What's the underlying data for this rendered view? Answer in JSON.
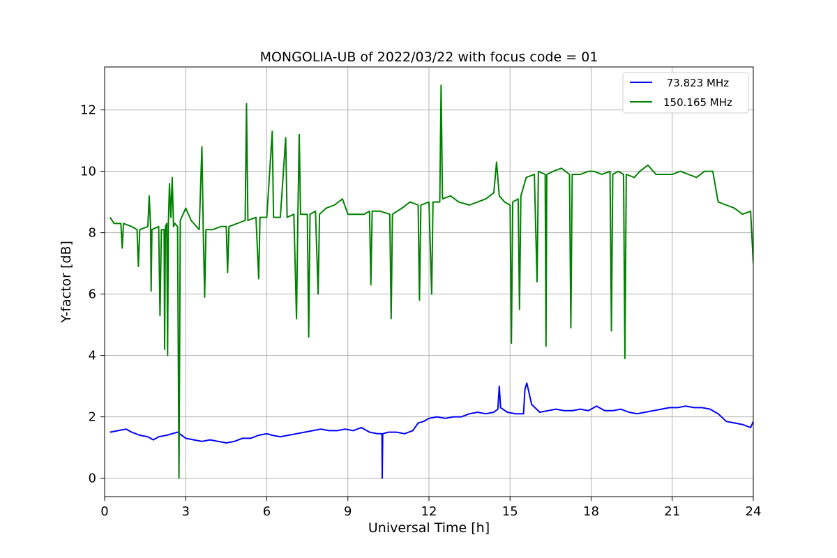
{
  "chart_data": {
    "type": "line",
    "title": "MONGOLIA-UB of 2022/03/22 with focus code = 01",
    "xlabel": "Universal Time [h]",
    "ylabel": "Y-factor [dB]",
    "xlim": [
      0,
      24
    ],
    "ylim": [
      -0.6,
      13.4
    ],
    "xticks": [
      0,
      3,
      6,
      9,
      12,
      15,
      18,
      21,
      24
    ],
    "xtick_labels": [
      "0",
      "3",
      "6",
      "9",
      "12",
      "15",
      "18",
      "21",
      "24"
    ],
    "yticks": [
      0,
      2,
      4,
      6,
      8,
      10,
      12
    ],
    "ytick_labels": [
      "0",
      "2",
      "4",
      "6",
      "8",
      "10",
      "12"
    ],
    "grid": true,
    "legend_position": "top-right",
    "series": [
      {
        "name": " 73.823 MHz",
        "color": "#0000ff",
        "points": [
          [
            0.2,
            1.5
          ],
          [
            0.5,
            1.55
          ],
          [
            0.8,
            1.6
          ],
          [
            1.0,
            1.5
          ],
          [
            1.3,
            1.4
          ],
          [
            1.6,
            1.35
          ],
          [
            1.8,
            1.25
          ],
          [
            2.0,
            1.35
          ],
          [
            2.3,
            1.4
          ],
          [
            2.5,
            1.45
          ],
          [
            2.7,
            1.5
          ],
          [
            3.0,
            1.3
          ],
          [
            3.3,
            1.25
          ],
          [
            3.6,
            1.2
          ],
          [
            3.9,
            1.25
          ],
          [
            4.2,
            1.2
          ],
          [
            4.5,
            1.15
          ],
          [
            4.8,
            1.2
          ],
          [
            5.1,
            1.3
          ],
          [
            5.4,
            1.3
          ],
          [
            5.7,
            1.4
          ],
          [
            6.0,
            1.45
          ],
          [
            6.2,
            1.4
          ],
          [
            6.5,
            1.35
          ],
          [
            6.8,
            1.4
          ],
          [
            7.1,
            1.45
          ],
          [
            7.4,
            1.5
          ],
          [
            7.7,
            1.55
          ],
          [
            8.0,
            1.6
          ],
          [
            8.3,
            1.55
          ],
          [
            8.6,
            1.55
          ],
          [
            8.9,
            1.6
          ],
          [
            9.2,
            1.55
          ],
          [
            9.5,
            1.65
          ],
          [
            9.8,
            1.5
          ],
          [
            10.1,
            1.45
          ],
          [
            10.26,
            1.45
          ],
          [
            10.27,
            0.0
          ],
          [
            10.29,
            1.45
          ],
          [
            10.5,
            1.5
          ],
          [
            10.8,
            1.5
          ],
          [
            11.1,
            1.45
          ],
          [
            11.4,
            1.55
          ],
          [
            11.6,
            1.8
          ],
          [
            11.8,
            1.85
          ],
          [
            12.0,
            1.95
          ],
          [
            12.3,
            2.0
          ],
          [
            12.6,
            1.95
          ],
          [
            12.9,
            2.0
          ],
          [
            13.2,
            2.0
          ],
          [
            13.5,
            2.1
          ],
          [
            13.8,
            2.15
          ],
          [
            14.1,
            2.1
          ],
          [
            14.4,
            2.15
          ],
          [
            14.55,
            2.25
          ],
          [
            14.6,
            3.0
          ],
          [
            14.65,
            2.3
          ],
          [
            14.9,
            2.15
          ],
          [
            15.2,
            2.1
          ],
          [
            15.5,
            2.1
          ],
          [
            15.55,
            2.9
          ],
          [
            15.62,
            3.1
          ],
          [
            15.8,
            2.4
          ],
          [
            16.1,
            2.15
          ],
          [
            16.4,
            2.2
          ],
          [
            16.7,
            2.25
          ],
          [
            17.0,
            2.2
          ],
          [
            17.3,
            2.2
          ],
          [
            17.6,
            2.25
          ],
          [
            17.9,
            2.2
          ],
          [
            18.2,
            2.35
          ],
          [
            18.5,
            2.2
          ],
          [
            18.8,
            2.2
          ],
          [
            19.1,
            2.25
          ],
          [
            19.4,
            2.15
          ],
          [
            19.7,
            2.1
          ],
          [
            20.0,
            2.15
          ],
          [
            20.3,
            2.2
          ],
          [
            20.6,
            2.25
          ],
          [
            20.9,
            2.3
          ],
          [
            21.2,
            2.3
          ],
          [
            21.5,
            2.35
          ],
          [
            21.8,
            2.3
          ],
          [
            22.1,
            2.3
          ],
          [
            22.4,
            2.25
          ],
          [
            22.7,
            2.1
          ],
          [
            23.0,
            1.85
          ],
          [
            23.3,
            1.8
          ],
          [
            23.6,
            1.75
          ],
          [
            23.9,
            1.65
          ],
          [
            24.0,
            1.85
          ]
        ]
      },
      {
        "name": "150.165 MHz",
        "color": "#008000",
        "points": [
          [
            0.2,
            8.5
          ],
          [
            0.35,
            8.3
          ],
          [
            0.6,
            8.3
          ],
          [
            0.65,
            7.5
          ],
          [
            0.7,
            8.3
          ],
          [
            1.0,
            8.2
          ],
          [
            1.2,
            8.1
          ],
          [
            1.25,
            6.9
          ],
          [
            1.3,
            8.1
          ],
          [
            1.6,
            8.2
          ],
          [
            1.65,
            9.2
          ],
          [
            1.7,
            8.2
          ],
          [
            1.72,
            6.1
          ],
          [
            1.75,
            8.1
          ],
          [
            2.0,
            8.2
          ],
          [
            2.05,
            5.3
          ],
          [
            2.1,
            8.1
          ],
          [
            2.2,
            8.1
          ],
          [
            2.22,
            4.2
          ],
          [
            2.25,
            8.2
          ],
          [
            2.3,
            8.3
          ],
          [
            2.33,
            4.0
          ],
          [
            2.36,
            8.3
          ],
          [
            2.4,
            9.6
          ],
          [
            2.45,
            8.5
          ],
          [
            2.5,
            9.8
          ],
          [
            2.55,
            8.2
          ],
          [
            2.6,
            8.3
          ],
          [
            2.7,
            8.2
          ],
          [
            2.75,
            0.0
          ],
          [
            2.8,
            8.4
          ],
          [
            3.0,
            8.8
          ],
          [
            3.2,
            8.4
          ],
          [
            3.5,
            8.1
          ],
          [
            3.6,
            10.8
          ],
          [
            3.65,
            8.1
          ],
          [
            3.7,
            5.9
          ],
          [
            3.75,
            8.1
          ],
          [
            4.0,
            8.1
          ],
          [
            4.3,
            8.2
          ],
          [
            4.5,
            8.2
          ],
          [
            4.55,
            6.7
          ],
          [
            4.6,
            8.2
          ],
          [
            4.9,
            8.3
          ],
          [
            5.2,
            8.4
          ],
          [
            5.25,
            12.2
          ],
          [
            5.3,
            8.4
          ],
          [
            5.6,
            8.5
          ],
          [
            5.7,
            6.5
          ],
          [
            5.75,
            8.5
          ],
          [
            6.0,
            8.5
          ],
          [
            6.2,
            11.3
          ],
          [
            6.25,
            8.5
          ],
          [
            6.5,
            8.5
          ],
          [
            6.7,
            11.1
          ],
          [
            6.75,
            8.5
          ],
          [
            7.0,
            8.6
          ],
          [
            7.1,
            5.2
          ],
          [
            7.15,
            8.6
          ],
          [
            7.2,
            11.2
          ],
          [
            7.25,
            8.6
          ],
          [
            7.5,
            8.6
          ],
          [
            7.55,
            4.6
          ],
          [
            7.6,
            8.6
          ],
          [
            7.8,
            8.7
          ],
          [
            7.9,
            6.0
          ],
          [
            7.95,
            8.6
          ],
          [
            8.2,
            8.8
          ],
          [
            8.5,
            8.9
          ],
          [
            8.8,
            9.1
          ],
          [
            9.0,
            8.6
          ],
          [
            9.3,
            8.6
          ],
          [
            9.6,
            8.6
          ],
          [
            9.8,
            8.7
          ],
          [
            9.85,
            6.3
          ],
          [
            9.9,
            8.7
          ],
          [
            10.2,
            8.7
          ],
          [
            10.55,
            8.6
          ],
          [
            10.6,
            5.2
          ],
          [
            10.65,
            8.6
          ],
          [
            11.0,
            8.8
          ],
          [
            11.3,
            9.0
          ],
          [
            11.6,
            8.9
          ],
          [
            11.65,
            5.8
          ],
          [
            11.7,
            8.9
          ],
          [
            12.0,
            9.0
          ],
          [
            12.1,
            6.0
          ],
          [
            12.15,
            9.0
          ],
          [
            12.4,
            9.0
          ],
          [
            12.45,
            12.8
          ],
          [
            12.5,
            9.1
          ],
          [
            12.8,
            9.2
          ],
          [
            13.1,
            9.0
          ],
          [
            13.5,
            8.9
          ],
          [
            13.8,
            9.0
          ],
          [
            14.1,
            9.1
          ],
          [
            14.4,
            9.3
          ],
          [
            14.5,
            10.3
          ],
          [
            14.6,
            9.2
          ],
          [
            14.8,
            9.0
          ],
          [
            15.0,
            8.9
          ],
          [
            15.05,
            4.4
          ],
          [
            15.1,
            9.0
          ],
          [
            15.3,
            9.1
          ],
          [
            15.35,
            5.5
          ],
          [
            15.4,
            9.2
          ],
          [
            15.6,
            9.8
          ],
          [
            15.9,
            9.9
          ],
          [
            16.0,
            6.4
          ],
          [
            16.05,
            10.0
          ],
          [
            16.3,
            9.9
          ],
          [
            16.33,
            4.3
          ],
          [
            16.36,
            9.9
          ],
          [
            16.6,
            10.0
          ],
          [
            16.9,
            10.1
          ],
          [
            17.2,
            9.9
          ],
          [
            17.25,
            4.9
          ],
          [
            17.3,
            9.9
          ],
          [
            17.6,
            9.9
          ],
          [
            17.9,
            10.0
          ],
          [
            18.1,
            10.0
          ],
          [
            18.4,
            9.9
          ],
          [
            18.7,
            10.0
          ],
          [
            18.75,
            4.8
          ],
          [
            18.8,
            9.9
          ],
          [
            19.0,
            10.0
          ],
          [
            19.2,
            9.9
          ],
          [
            19.25,
            3.9
          ],
          [
            19.3,
            9.9
          ],
          [
            19.6,
            9.8
          ],
          [
            19.8,
            10.0
          ],
          [
            20.1,
            10.2
          ],
          [
            20.4,
            9.9
          ],
          [
            20.7,
            9.9
          ],
          [
            21.0,
            9.9
          ],
          [
            21.3,
            10.0
          ],
          [
            21.6,
            9.9
          ],
          [
            21.9,
            9.8
          ],
          [
            22.2,
            10.0
          ],
          [
            22.5,
            10.0
          ],
          [
            22.7,
            9.0
          ],
          [
            23.0,
            8.9
          ],
          [
            23.3,
            8.8
          ],
          [
            23.6,
            8.6
          ],
          [
            23.9,
            8.7
          ],
          [
            24.0,
            7.0
          ]
        ]
      }
    ]
  }
}
